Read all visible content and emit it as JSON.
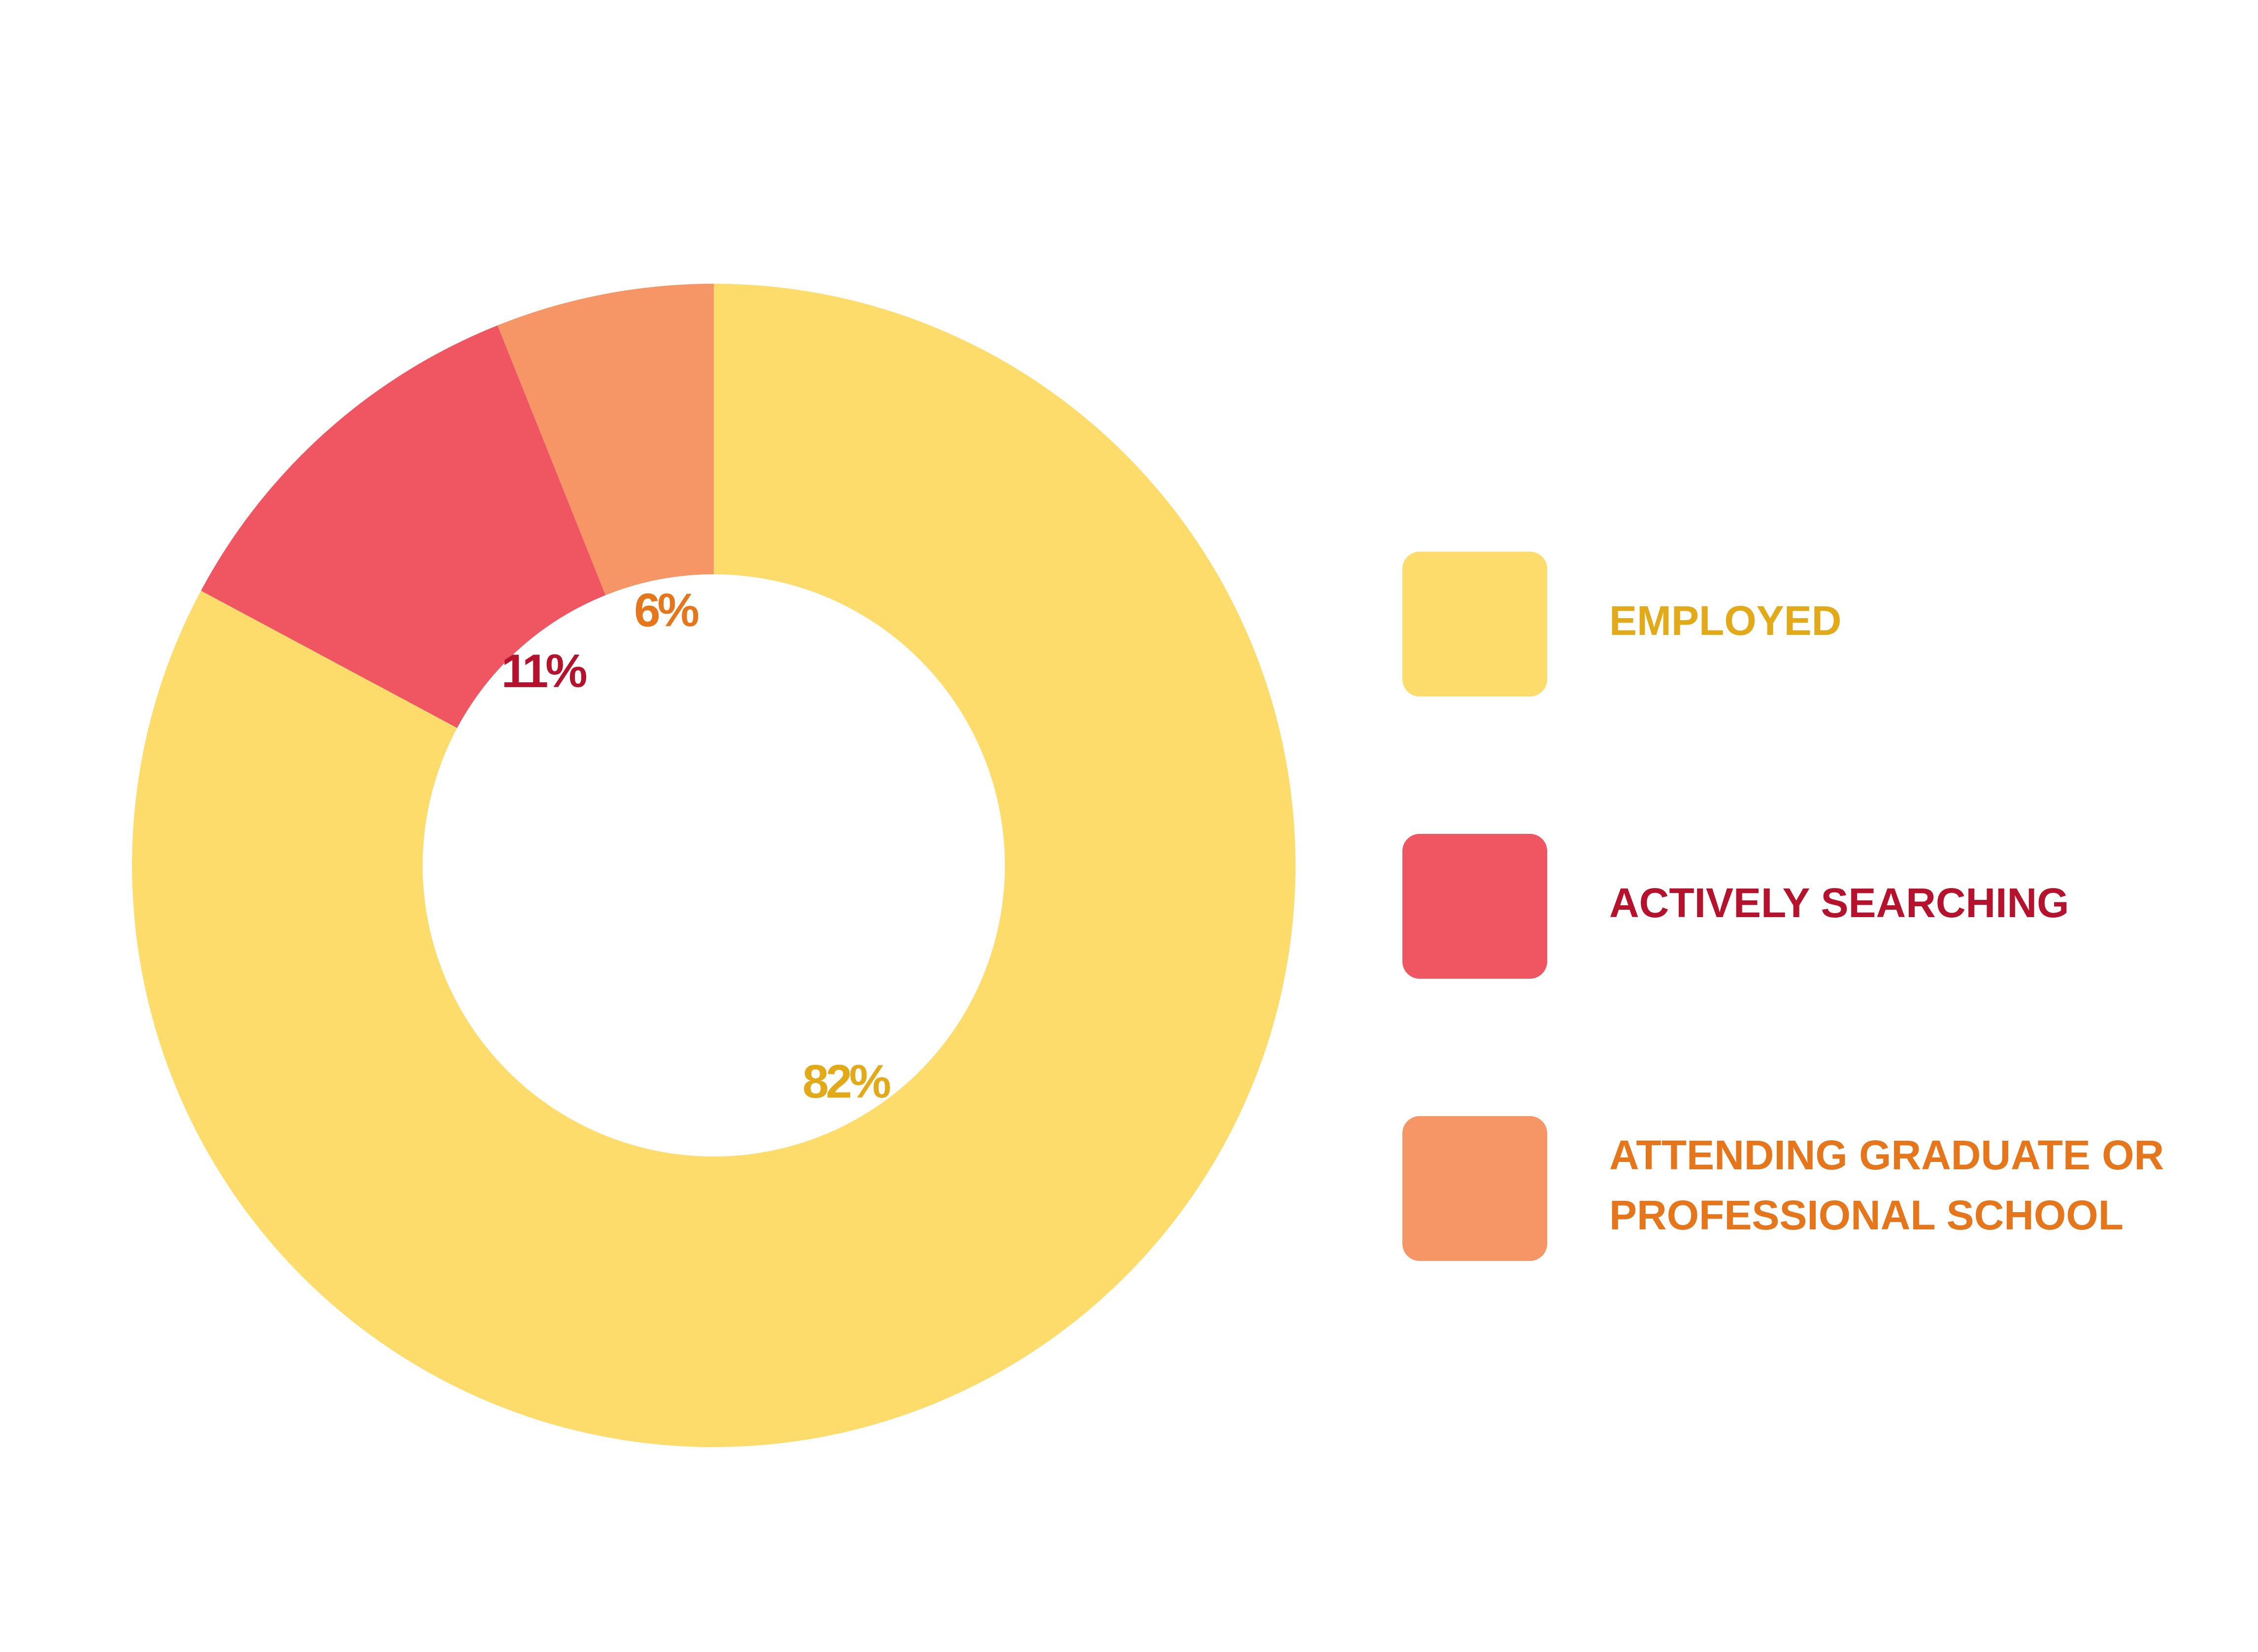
{
  "chart_data": {
    "type": "donut",
    "categories": [
      "EMPLOYED",
      "ACTIVELY SEARCHING",
      "ATTENDING GRADUATE OR PROFESSIONAL SCHOOL"
    ],
    "values": [
      82,
      11,
      6
    ],
    "value_labels": [
      "82%",
      "11%",
      "6%"
    ],
    "colors": [
      "#fddc6c",
      "#f05562",
      "#f69565"
    ],
    "label_colors": [
      "#e2a918",
      "#b5122e",
      "#e6761c"
    ],
    "legend": "right"
  }
}
